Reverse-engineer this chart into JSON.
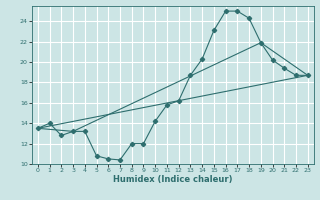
{
  "title": "",
  "xlabel": "Humidex (Indice chaleur)",
  "ylabel": "",
  "bg_color": "#cce5e5",
  "grid_color": "#ffffff",
  "line_color": "#2e6e6e",
  "xlim": [
    -0.5,
    23.5
  ],
  "ylim": [
    10,
    25.5
  ],
  "yticks": [
    10,
    12,
    14,
    16,
    18,
    20,
    22,
    24
  ],
  "xticks": [
    0,
    1,
    2,
    3,
    4,
    5,
    6,
    7,
    8,
    9,
    10,
    11,
    12,
    13,
    14,
    15,
    16,
    17,
    18,
    19,
    20,
    21,
    22,
    23
  ],
  "curve1_x": [
    0,
    1,
    2,
    3,
    4,
    5,
    6,
    7,
    8,
    9,
    10,
    11,
    12,
    13,
    14,
    15,
    16,
    17,
    18,
    19,
    20,
    21,
    22,
    23
  ],
  "curve1_y": [
    13.5,
    14.0,
    12.8,
    13.2,
    13.2,
    10.8,
    10.5,
    10.4,
    12.0,
    12.0,
    14.2,
    15.8,
    16.2,
    18.7,
    20.3,
    23.1,
    25.0,
    25.0,
    24.3,
    21.9,
    20.2,
    19.4,
    18.7,
    18.7
  ],
  "curve2_x": [
    0,
    3,
    19,
    23
  ],
  "curve2_y": [
    13.5,
    13.2,
    21.9,
    18.7
  ],
  "curve3_x": [
    0,
    23
  ],
  "curve3_y": [
    13.5,
    18.7
  ]
}
